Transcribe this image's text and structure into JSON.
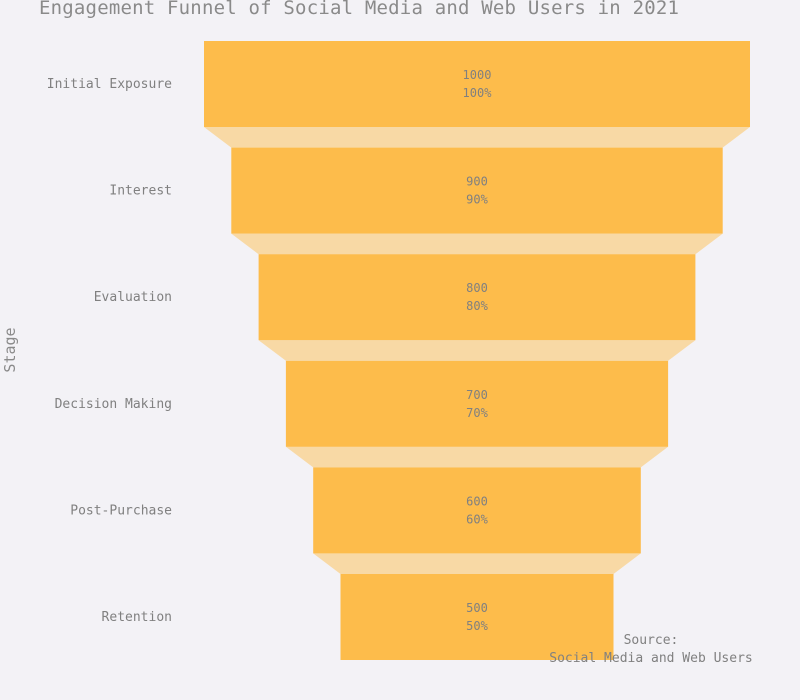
{
  "colors": {
    "background": "#f3f2f6",
    "bar": "#fdbc4b",
    "connector": "#f8d9a5",
    "text": "#808080"
  },
  "chart_data": {
    "type": "funnel",
    "title": "Engagement Funnel of Social Media and Web Users in 2021",
    "ylabel": "Stage",
    "categories": [
      "Initial Exposure",
      "Interest",
      "Evaluation",
      "Decision Making",
      "Post-Purchase",
      "Retention"
    ],
    "values": [
      1000,
      900,
      800,
      700,
      600,
      500
    ],
    "percent_labels": [
      "100%",
      "90%",
      "80%",
      "70%",
      "60%",
      "50%"
    ],
    "max_value": 1000
  },
  "annotation": {
    "source_label": "Source:",
    "source_text": "Social Media and Web Users"
  }
}
